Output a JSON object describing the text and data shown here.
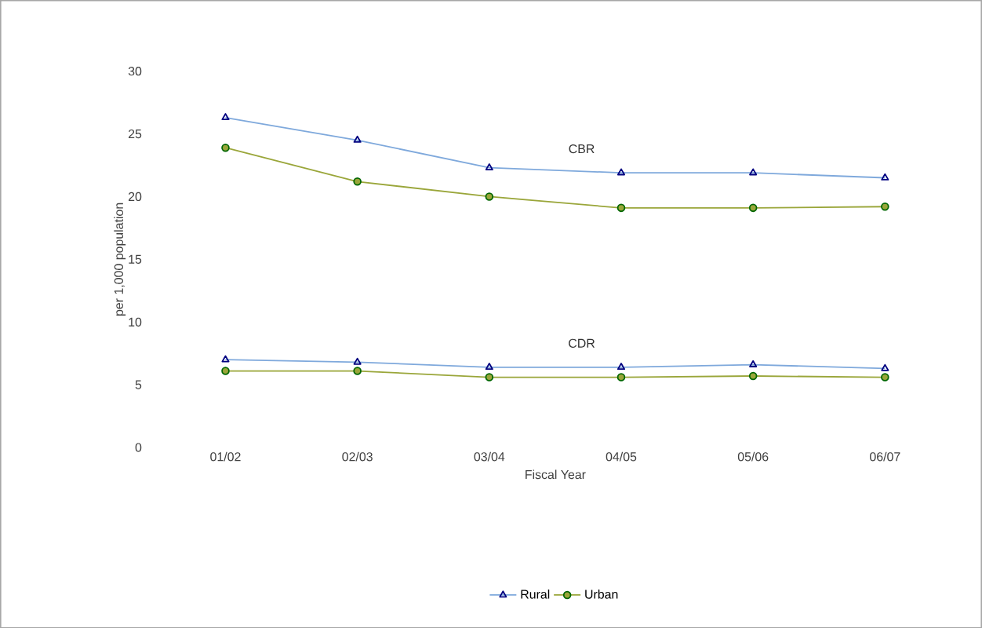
{
  "chart_data": {
    "type": "line",
    "xlabel": "Fiscal Year",
    "ylabel": "per 1,000 population",
    "categories": [
      "01/02",
      "02/03",
      "03/04",
      "04/05",
      "05/06",
      "06/07"
    ],
    "series": [
      {
        "name": "Rural",
        "color": "#7fa9dc",
        "marker": "triangle",
        "values": [
          26.3,
          24.5,
          22.3,
          21.9,
          21.9,
          21.5
        ]
      },
      {
        "name": "Urban",
        "color": "#9aa63a",
        "marker": "circle",
        "values": [
          23.9,
          21.2,
          20.0,
          19.1,
          19.1,
          19.2
        ]
      },
      {
        "color": "#7fa9dc",
        "marker": "triangle",
        "values": [
          7.0,
          6.8,
          6.4,
          6.4,
          6.6,
          6.3
        ]
      },
      {
        "color": "#9aa63a",
        "marker": "circle",
        "values": [
          6.1,
          6.1,
          5.6,
          5.6,
          5.7,
          5.6
        ]
      }
    ],
    "annotations": [
      "CBR",
      "CDR"
    ],
    "ylim": [
      0,
      30
    ],
    "yticks": [
      0,
      5,
      10,
      15,
      20,
      25,
      30
    ],
    "grid": false,
    "legend": "bottom"
  }
}
